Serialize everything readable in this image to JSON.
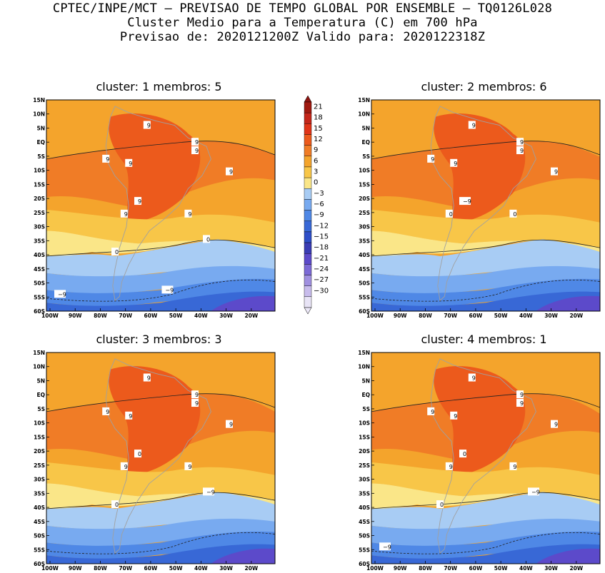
{
  "title": {
    "line1": "CPTEC/INPE/MCT – PREVISAO DE TEMPO GLOBAL POR ENSEMBLE – TQ0126L028",
    "line2": "Cluster Medio para a Temperatura (C) em 700 hPa",
    "line3": "Previsao de: 2020121200Z   Valido para: 2020122318Z"
  },
  "panels": [
    {
      "title": "cluster: 1  membros: 5"
    },
    {
      "title": "cluster: 2  membros: 6"
    },
    {
      "title": "cluster: 3  membros: 3"
    },
    {
      "title": "cluster: 4  membros: 1"
    }
  ],
  "axes": {
    "lat_labels": [
      "15N",
      "10N",
      "5N",
      "EQ",
      "5S",
      "10S",
      "15S",
      "20S",
      "25S",
      "30S",
      "35S",
      "40S",
      "45S",
      "50S",
      "55S",
      "60S"
    ],
    "lon_labels": [
      "100W",
      "90W",
      "80W",
      "70W",
      "60W",
      "50W",
      "40W",
      "30W",
      "20W"
    ]
  },
  "colorbar": {
    "labels": [
      "21",
      "18",
      "15",
      "12",
      "9",
      "6",
      "3",
      "0",
      "−3",
      "−6",
      "−9",
      "−12",
      "−15",
      "−18",
      "−21",
      "−24",
      "−27",
      "−30"
    ],
    "colors": [
      "#a01a10",
      "#c4261a",
      "#e03418",
      "#ec5a1c",
      "#f07c26",
      "#f4a42c",
      "#f8c648",
      "#fae688",
      "#a8ccf4",
      "#78aaf0",
      "#4f88e6",
      "#3868d6",
      "#2e4ec8",
      "#3a3cb4",
      "#5c4aca",
      "#7c6ad6",
      "#a090e0",
      "#c8bcec",
      "#e8e4f6"
    ],
    "top_color": "#8e1410",
    "bottom_color": "#ece8f8"
  },
  "contour_labels": {
    "panel1": [
      "9",
      "9",
      "9",
      "9",
      "9",
      "9",
      "9",
      "9",
      "9",
      "0",
      "0",
      "−9",
      "−9"
    ],
    "panel2": [
      "9",
      "9",
      "9",
      "9",
      "9",
      "9",
      "0",
      "0",
      "−9"
    ],
    "panel3": [
      "9",
      "9",
      "9",
      "9",
      "9",
      "9",
      "9",
      "9",
      "0",
      "0",
      "−9"
    ],
    "panel4": [
      "9",
      "9",
      "9",
      "9",
      "9",
      "9",
      "9",
      "9",
      "0",
      "0",
      "−9",
      "−9"
    ]
  },
  "colors": {
    "orange_mid": "#f4a42c",
    "orange_dark": "#f07c26",
    "red_orange": "#ec5a1c",
    "light_orange": "#f8c648",
    "pale_yellow": "#fae688",
    "light_blue": "#a8ccf4",
    "mid_blue": "#78aaf0",
    "blue": "#4f88e6",
    "dark_blue": "#3868d6",
    "navy": "#2e4ec8",
    "purple": "#5c4aca",
    "land_outline": "#a0a0a0"
  }
}
